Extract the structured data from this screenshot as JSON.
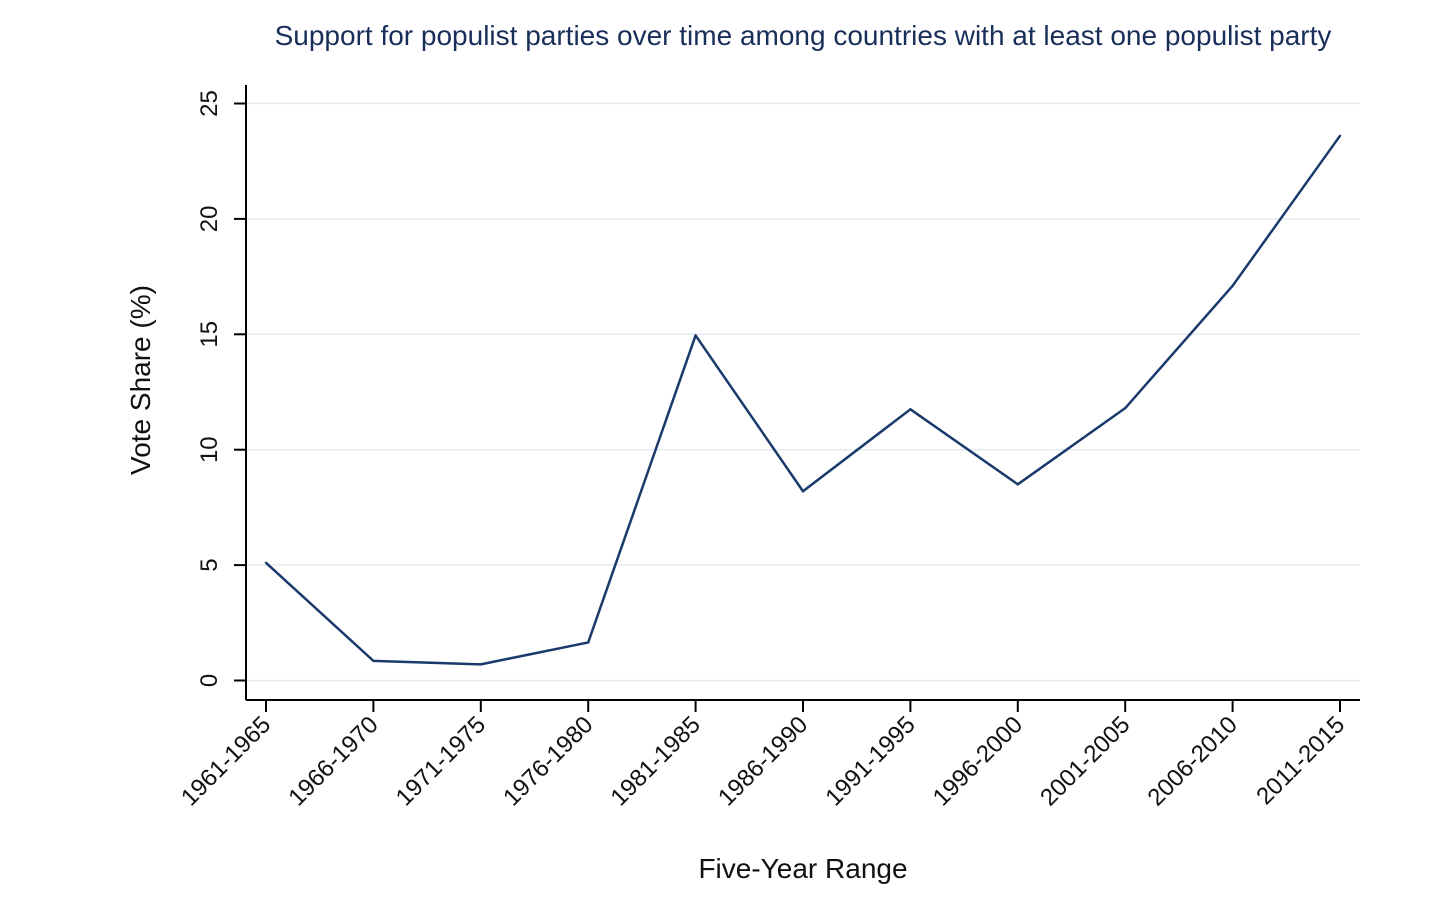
{
  "chart_data": {
    "type": "line",
    "title": "Support for populist parties over time among countries with at least one populist party",
    "xlabel": "Five-Year Range",
    "ylabel": "Vote Share (%)",
    "categories": [
      "1961-1965",
      "1966-1970",
      "1971-1975",
      "1976-1980",
      "1981-1985",
      "1986-1990",
      "1991-1995",
      "1996-2000",
      "2001-2005",
      "2006-2010",
      "2011-2015"
    ],
    "series": [
      {
        "name": "Vote Share",
        "values": [
          5.1,
          0.85,
          0.7,
          1.65,
          14.95,
          8.2,
          11.75,
          8.5,
          11.8,
          17.1,
          23.6
        ]
      }
    ],
    "ylim": [
      0,
      25
    ],
    "yticks": [
      0,
      5,
      10,
      15,
      20,
      25
    ],
    "grid": true,
    "line_color": "#1a3a6b"
  }
}
